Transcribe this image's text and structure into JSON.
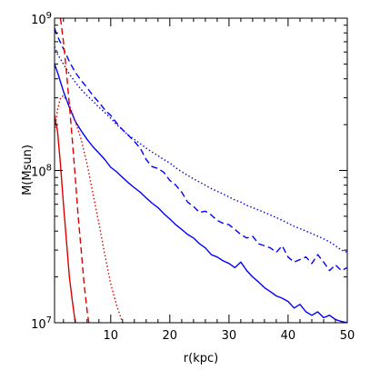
{
  "chart_data": {
    "type": "line",
    "title": "",
    "xlabel": "r(kpc)",
    "ylabel": "M(Msun)",
    "xlim": [
      0.5,
      50
    ],
    "ylim": [
      10000000,
      1000000000
    ],
    "yscale": "log",
    "grid": false,
    "legend": "none",
    "x_ticks": [
      10,
      20,
      30,
      40,
      50
    ],
    "x_minor_step": 2,
    "y_tick_labels": [
      {
        "value": 10000000,
        "base": "10",
        "exp": "7"
      },
      {
        "value": 100000000,
        "base": "10",
        "exp": "8"
      },
      {
        "value": 1000000000,
        "base": "10",
        "exp": "9"
      }
    ],
    "series": [
      {
        "color": "#0000ff",
        "dash": "solid",
        "points": [
          [
            0.5,
            500000000
          ],
          [
            1,
            440000000
          ],
          [
            2,
            330000000
          ],
          [
            3,
            260000000
          ],
          [
            4,
            210000000
          ],
          [
            5,
            182000000
          ],
          [
            6,
            160000000
          ],
          [
            7,
            143000000
          ],
          [
            8,
            130000000
          ],
          [
            9,
            118000000
          ],
          [
            10,
            105000000
          ],
          [
            11,
            98000000
          ],
          [
            12,
            90000000
          ],
          [
            13,
            83000000
          ],
          [
            14,
            77000000
          ],
          [
            15,
            72000000
          ],
          [
            16,
            66000000
          ],
          [
            17,
            61000000
          ],
          [
            18,
            57000000
          ],
          [
            19,
            52000000
          ],
          [
            20,
            48000000
          ],
          [
            21,
            44000000
          ],
          [
            22,
            41000000
          ],
          [
            23,
            38000000
          ],
          [
            24,
            36000000
          ],
          [
            25,
            33000000
          ],
          [
            26,
            31000000
          ],
          [
            27,
            28000000
          ],
          [
            28,
            27000000
          ],
          [
            29,
            25500000
          ],
          [
            30,
            24500000
          ],
          [
            31,
            23000000
          ],
          [
            32,
            25000000
          ],
          [
            33,
            22000000
          ],
          [
            34,
            20000000
          ],
          [
            35,
            18500000
          ],
          [
            36,
            17000000
          ],
          [
            37,
            16000000
          ],
          [
            38,
            15000000
          ],
          [
            39,
            14500000
          ],
          [
            40,
            13800000
          ],
          [
            41,
            12500000
          ],
          [
            42,
            13200000
          ],
          [
            43,
            11800000
          ],
          [
            44,
            11200000
          ],
          [
            45,
            11800000
          ],
          [
            46,
            10800000
          ],
          [
            47,
            11200000
          ],
          [
            48,
            10500000
          ],
          [
            49,
            10200000
          ],
          [
            50,
            10000000
          ]
        ]
      },
      {
        "color": "#0000ff",
        "dash": "dashed",
        "points": [
          [
            0.5,
            860000000
          ],
          [
            1,
            760000000
          ],
          [
            2,
            630000000
          ],
          [
            3,
            520000000
          ],
          [
            4,
            440000000
          ],
          [
            5,
            390000000
          ],
          [
            6,
            350000000
          ],
          [
            7,
            310000000
          ],
          [
            8,
            280000000
          ],
          [
            9,
            250000000
          ],
          [
            10,
            230000000
          ],
          [
            11,
            205000000
          ],
          [
            12,
            185000000
          ],
          [
            13,
            170000000
          ],
          [
            14,
            155000000
          ],
          [
            15,
            140000000
          ],
          [
            16,
            118000000
          ],
          [
            17,
            106000000
          ],
          [
            18,
            103000000
          ],
          [
            19,
            97000000
          ],
          [
            20,
            86000000
          ],
          [
            21,
            80000000
          ],
          [
            22,
            72000000
          ],
          [
            23,
            62000000
          ],
          [
            24,
            58000000
          ],
          [
            25,
            53000000
          ],
          [
            26,
            54000000
          ],
          [
            27,
            51000000
          ],
          [
            28,
            47000000
          ],
          [
            29,
            45000000
          ],
          [
            30,
            44000000
          ],
          [
            31,
            41000000
          ],
          [
            32,
            38000000
          ],
          [
            33,
            36000000
          ],
          [
            34,
            37000000
          ],
          [
            35,
            33000000
          ],
          [
            36,
            32000000
          ],
          [
            37,
            31000000
          ],
          [
            38,
            29000000
          ],
          [
            39,
            32000000
          ],
          [
            40,
            27000000
          ],
          [
            41,
            25000000
          ],
          [
            42,
            26000000
          ],
          [
            43,
            27000000
          ],
          [
            44,
            24500000
          ],
          [
            45,
            28000000
          ],
          [
            46,
            25000000
          ],
          [
            47,
            22000000
          ],
          [
            48,
            24000000
          ],
          [
            49,
            22000000
          ],
          [
            50,
            23000000
          ]
        ]
      },
      {
        "color": "#0000ff",
        "dash": "dotted",
        "points": [
          [
            0.5,
            650000000
          ],
          [
            1,
            580000000
          ],
          [
            2,
            500000000
          ],
          [
            3,
            430000000
          ],
          [
            4,
            380000000
          ],
          [
            5,
            340000000
          ],
          [
            6,
            310000000
          ],
          [
            7,
            285000000
          ],
          [
            8,
            260000000
          ],
          [
            9,
            240000000
          ],
          [
            10,
            220000000
          ],
          [
            11,
            200000000
          ],
          [
            12,
            185000000
          ],
          [
            13,
            170000000
          ],
          [
            14,
            160000000
          ],
          [
            15,
            150000000
          ],
          [
            16,
            140000000
          ],
          [
            17,
            132000000
          ],
          [
            18,
            125000000
          ],
          [
            19,
            118000000
          ],
          [
            20,
            112000000
          ],
          [
            21,
            104000000
          ],
          [
            22,
            98000000
          ],
          [
            23,
            93000000
          ],
          [
            24,
            88000000
          ],
          [
            25,
            84000000
          ],
          [
            26,
            80000000
          ],
          [
            27,
            76000000
          ],
          [
            28,
            73000000
          ],
          [
            29,
            70000000
          ],
          [
            30,
            67000000
          ],
          [
            31,
            64000000
          ],
          [
            32,
            62000000
          ],
          [
            33,
            59000000
          ],
          [
            34,
            57000000
          ],
          [
            35,
            55000000
          ],
          [
            36,
            53000000
          ],
          [
            37,
            51000000
          ],
          [
            38,
            49000000
          ],
          [
            39,
            47000000
          ],
          [
            40,
            45000000
          ],
          [
            41,
            43000000
          ],
          [
            42,
            41500000
          ],
          [
            43,
            40000000
          ],
          [
            44,
            38500000
          ],
          [
            45,
            37000000
          ],
          [
            46,
            35500000
          ],
          [
            47,
            34000000
          ],
          [
            48,
            32000000
          ],
          [
            49,
            30000000
          ],
          [
            50,
            29000000
          ]
        ]
      },
      {
        "color": "#dd0000",
        "dash": "solid",
        "points": [
          [
            0.5,
            230000000
          ],
          [
            1,
            180000000
          ],
          [
            1.5,
            110000000
          ],
          [
            2,
            60000000
          ],
          [
            2.5,
            35000000
          ],
          [
            3,
            20000000
          ],
          [
            3.5,
            14000000
          ],
          [
            4,
            10000000
          ]
        ]
      },
      {
        "color": "#dd0000",
        "dash": "dashed",
        "points": [
          [
            1.5,
            1000000000
          ],
          [
            2,
            700000000
          ],
          [
            2.5,
            450000000
          ],
          [
            3,
            270000000
          ],
          [
            3.5,
            160000000
          ],
          [
            4,
            90000000
          ],
          [
            4.5,
            50000000
          ],
          [
            5,
            30000000
          ],
          [
            5.5,
            18000000
          ],
          [
            6,
            12000000
          ],
          [
            6.3,
            10000000
          ]
        ]
      },
      {
        "color": "#dd0000",
        "dash": "dotted",
        "points": [
          [
            0.5,
            180000000
          ],
          [
            1,
            250000000
          ],
          [
            1.5,
            300000000
          ],
          [
            2,
            310000000
          ],
          [
            2.5,
            290000000
          ],
          [
            3,
            270000000
          ],
          [
            4,
            210000000
          ],
          [
            5,
            160000000
          ],
          [
            6,
            110000000
          ],
          [
            7,
            70000000
          ],
          [
            8,
            45000000
          ],
          [
            9,
            28000000
          ],
          [
            10,
            18000000
          ],
          [
            11,
            13000000
          ],
          [
            12,
            10000000
          ]
        ]
      }
    ]
  }
}
